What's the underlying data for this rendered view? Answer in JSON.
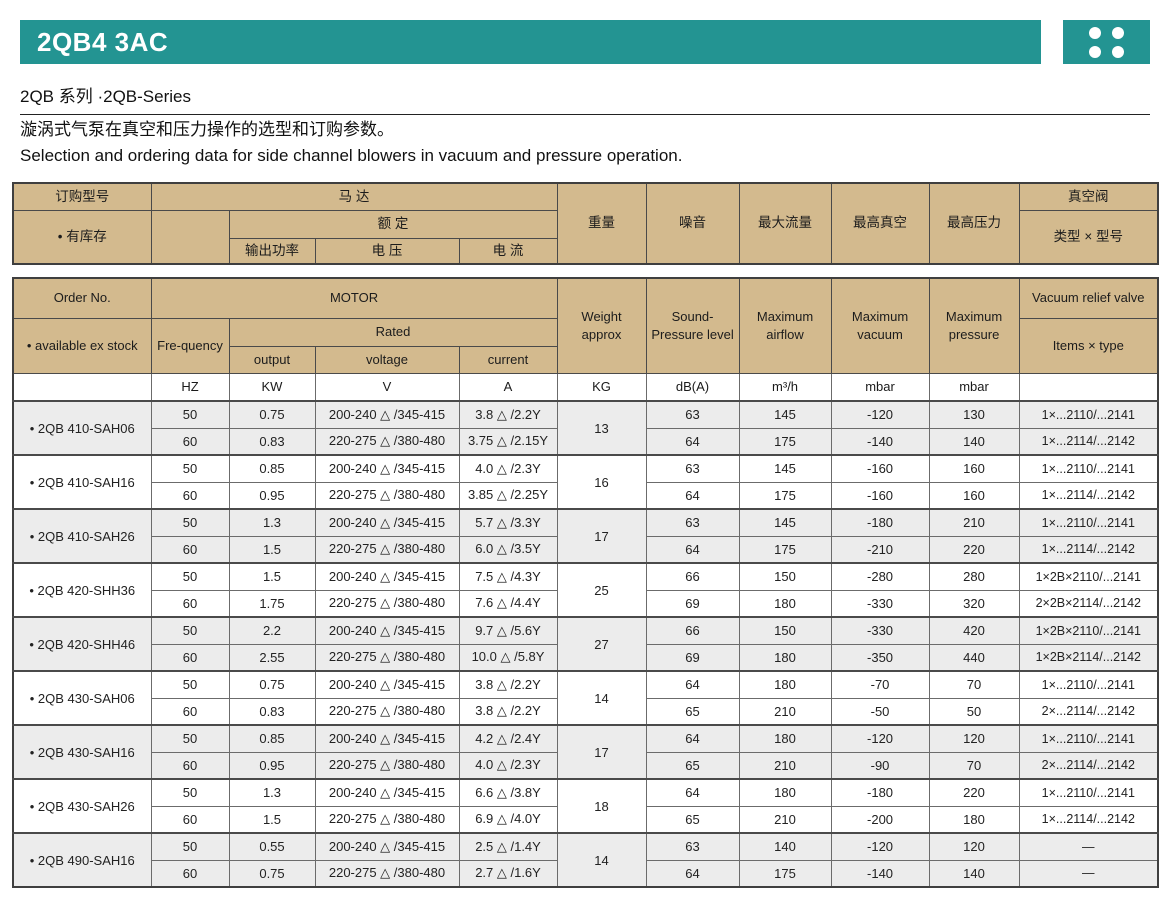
{
  "header": {
    "title": "2QB4 3AC",
    "series": "2QB  系列 ·2QB-Series",
    "desc_zh": "漩涡式气泵在真空和压力操作的选型和订购参数。",
    "desc_en": "Selection and ordering data for side channel blowers in vacuum and pressure operation."
  },
  "colors": {
    "teal": "#239492",
    "header_bg": "#d3ba8e",
    "shaded_row": "#ececec"
  },
  "table": {
    "zh": {
      "order_no": "订购型号",
      "ex_stock": "• 有库存",
      "motor": "马 达",
      "rated": "额 定",
      "output": "输出功率",
      "voltage": "电 压",
      "current": "电 流",
      "weight": "重量",
      "noise": "噪音",
      "max_airflow": "最大流量",
      "max_vacuum": "最高真空",
      "max_pressure": "最高压力",
      "valve": "真空阀",
      "valve_items": "类型 × 型号"
    },
    "en": {
      "order_no": "Order No.",
      "ex_stock": "• available ex stock",
      "frequency": "Fre-quency",
      "motor": "MOTOR",
      "rated": "Rated",
      "output": "output",
      "voltage": "voltage",
      "current": "current",
      "weight": "Weight approx",
      "noise": "Sound- Pressure level",
      "max_airflow": "Maximum airflow",
      "max_vacuum": "Maximum vacuum",
      "max_pressure": "Maximum pressure",
      "valve": "Vacuum relief valve",
      "valve_items": "Items × type"
    },
    "units": {
      "hz": "HZ",
      "kw": "KW",
      "v": "V",
      "a": "A",
      "kg": "KG",
      "db": "dB(A)",
      "m3h": "m³/h",
      "mbar1": "mbar",
      "mbar2": "mbar"
    },
    "groups": [
      {
        "model": "• 2QB 410-SAH06",
        "shaded": true,
        "weight": "13",
        "rows": [
          {
            "hz": "50",
            "kw": "0.75",
            "v": "200-240 △ /345-415",
            "a": "3.8 △ /2.2Y",
            "db": "63",
            "m3h": "145",
            "vac": "-120",
            "pres": "130",
            "valve": "1×...2110/...2141"
          },
          {
            "hz": "60",
            "kw": "0.83",
            "v": "220-275 △ /380-480",
            "a": "3.75 △ /2.15Y",
            "db": "64",
            "m3h": "175",
            "vac": "-140",
            "pres": "140",
            "valve": "1×...2114/...2142"
          }
        ]
      },
      {
        "model": "• 2QB 410-SAH16",
        "shaded": false,
        "weight": "16",
        "rows": [
          {
            "hz": "50",
            "kw": "0.85",
            "v": "200-240 △ /345-415",
            "a": "4.0 △ /2.3Y",
            "db": "63",
            "m3h": "145",
            "vac": "-160",
            "pres": "160",
            "valve": "1×...2110/...2141"
          },
          {
            "hz": "60",
            "kw": "0.95",
            "v": "220-275 △ /380-480",
            "a": "3.85 △ /2.25Y",
            "db": "64",
            "m3h": "175",
            "vac": "-160",
            "pres": "160",
            "valve": "1×...2114/...2142"
          }
        ]
      },
      {
        "model": "• 2QB 410-SAH26",
        "shaded": true,
        "weight": "17",
        "rows": [
          {
            "hz": "50",
            "kw": "1.3",
            "v": "200-240 △ /345-415",
            "a": "5.7 △ /3.3Y",
            "db": "63",
            "m3h": "145",
            "vac": "-180",
            "pres": "210",
            "valve": "1×...2110/...2141"
          },
          {
            "hz": "60",
            "kw": "1.5",
            "v": "220-275 △ /380-480",
            "a": "6.0 △ /3.5Y",
            "db": "64",
            "m3h": "175",
            "vac": "-210",
            "pres": "220",
            "valve": "1×...2114/...2142"
          }
        ]
      },
      {
        "model": "• 2QB 420-SHH36",
        "shaded": false,
        "weight": "25",
        "rows": [
          {
            "hz": "50",
            "kw": "1.5",
            "v": "200-240 △ /345-415",
            "a": "7.5 △ /4.3Y",
            "db": "66",
            "m3h": "150",
            "vac": "-280",
            "pres": "280",
            "valve": "1×2B×2110/...2141"
          },
          {
            "hz": "60",
            "kw": "1.75",
            "v": "220-275 △ /380-480",
            "a": "7.6 △ /4.4Y",
            "db": "69",
            "m3h": "180",
            "vac": "-330",
            "pres": "320",
            "valve": "2×2B×2114/...2142"
          }
        ]
      },
      {
        "model": "• 2QB 420-SHH46",
        "shaded": true,
        "weight": "27",
        "rows": [
          {
            "hz": "50",
            "kw": "2.2",
            "v": "200-240 △ /345-415",
            "a": "9.7 △ /5.6Y",
            "db": "66",
            "m3h": "150",
            "vac": "-330",
            "pres": "420",
            "valve": "1×2B×2110/...2141"
          },
          {
            "hz": "60",
            "kw": "2.55",
            "v": "220-275 △ /380-480",
            "a": "10.0 △ /5.8Y",
            "db": "69",
            "m3h": "180",
            "vac": "-350",
            "pres": "440",
            "valve": "1×2B×2114/...2142"
          }
        ]
      },
      {
        "model": "• 2QB 430-SAH06",
        "shaded": false,
        "weight": "14",
        "rows": [
          {
            "hz": "50",
            "kw": "0.75",
            "v": "200-240 △ /345-415",
            "a": "3.8 △ /2.2Y",
            "db": "64",
            "m3h": "180",
            "vac": "-70",
            "pres": "70",
            "valve": "1×...2110/...2141"
          },
          {
            "hz": "60",
            "kw": "0.83",
            "v": "220-275 △ /380-480",
            "a": "3.8 △ /2.2Y",
            "db": "65",
            "m3h": "210",
            "vac": "-50",
            "pres": "50",
            "valve": "2×...2114/...2142"
          }
        ]
      },
      {
        "model": "• 2QB 430-SAH16",
        "shaded": true,
        "weight": "17",
        "rows": [
          {
            "hz": "50",
            "kw": "0.85",
            "v": "200-240 △ /345-415",
            "a": "4.2 △ /2.4Y",
            "db": "64",
            "m3h": "180",
            "vac": "-120",
            "pres": "120",
            "valve": "1×...2110/...2141"
          },
          {
            "hz": "60",
            "kw": "0.95",
            "v": "220-275 △ /380-480",
            "a": "4.0 △ /2.3Y",
            "db": "65",
            "m3h": "210",
            "vac": "-90",
            "pres": "70",
            "valve": "2×...2114/...2142"
          }
        ]
      },
      {
        "model": "• 2QB 430-SAH26",
        "shaded": false,
        "weight": "18",
        "rows": [
          {
            "hz": "50",
            "kw": "1.3",
            "v": "200-240 △ /345-415",
            "a": "6.6 △ /3.8Y",
            "db": "64",
            "m3h": "180",
            "vac": "-180",
            "pres": "220",
            "valve": "1×...2110/...2141"
          },
          {
            "hz": "60",
            "kw": "1.5",
            "v": "220-275 △ /380-480",
            "a": "6.9 △ /4.0Y",
            "db": "65",
            "m3h": "210",
            "vac": "-200",
            "pres": "180",
            "valve": "1×...2114/...2142"
          }
        ]
      },
      {
        "model": "• 2QB 490-SAH16",
        "shaded": true,
        "weight": "14",
        "rows": [
          {
            "hz": "50",
            "kw": "0.55",
            "v": "200-240 △ /345-415",
            "a": "2.5 △ /1.4Y",
            "db": "63",
            "m3h": "140",
            "vac": "-120",
            "pres": "120",
            "valve": "—"
          },
          {
            "hz": "60",
            "kw": "0.75",
            "v": "220-275 △ /380-480",
            "a": "2.7 △ /1.6Y",
            "db": "64",
            "m3h": "175",
            "vac": "-140",
            "pres": "140",
            "valve": "—"
          }
        ]
      }
    ]
  }
}
